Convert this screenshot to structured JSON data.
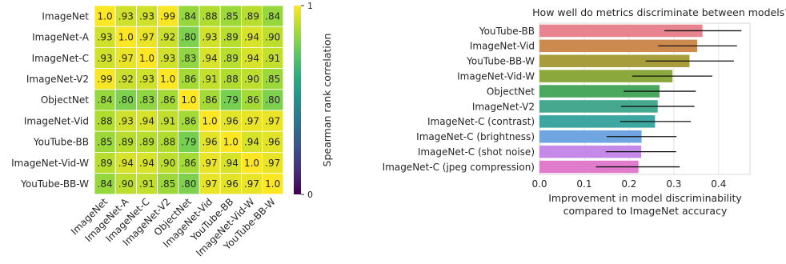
{
  "chart_data": [
    {
      "type": "heatmap",
      "title": "",
      "labels": [
        "ImageNet",
        "ImageNet-A",
        "ImageNet-C",
        "ImageNet-V2",
        "ObjectNet",
        "ImageNet-Vid",
        "YouTube-BB",
        "ImageNet-Vid-W",
        "YouTube-BB-W"
      ],
      "values": [
        [
          1.0,
          0.93,
          0.93,
          0.99,
          0.84,
          0.88,
          0.85,
          0.89,
          0.84
        ],
        [
          0.93,
          1.0,
          0.97,
          0.92,
          0.8,
          0.93,
          0.89,
          0.94,
          0.9
        ],
        [
          0.93,
          0.97,
          1.0,
          0.93,
          0.83,
          0.94,
          0.89,
          0.94,
          0.91
        ],
        [
          0.99,
          0.92,
          0.93,
          1.0,
          0.86,
          0.91,
          0.88,
          0.9,
          0.85
        ],
        [
          0.84,
          0.8,
          0.83,
          0.86,
          1.0,
          0.86,
          0.79,
          0.86,
          0.8
        ],
        [
          0.88,
          0.93,
          0.94,
          0.91,
          0.86,
          1.0,
          0.96,
          0.97,
          0.97
        ],
        [
          0.85,
          0.89,
          0.89,
          0.88,
          0.79,
          0.96,
          1.0,
          0.94,
          0.96
        ],
        [
          0.89,
          0.94,
          0.94,
          0.9,
          0.86,
          0.97,
          0.94,
          1.0,
          0.97
        ],
        [
          0.84,
          0.9,
          0.91,
          0.85,
          0.8,
          0.97,
          0.96,
          0.97,
          1.0
        ]
      ],
      "cell_text": [
        [
          "1.0",
          ".93",
          ".93",
          ".99",
          ".84",
          ".88",
          ".85",
          ".89",
          ".84"
        ],
        [
          ".93",
          "1.0",
          ".97",
          ".92",
          ".80",
          ".93",
          ".89",
          ".94",
          ".90"
        ],
        [
          ".93",
          ".97",
          "1.0",
          ".93",
          ".83",
          ".94",
          ".89",
          ".94",
          ".91"
        ],
        [
          ".99",
          ".92",
          ".93",
          "1.0",
          ".86",
          ".91",
          ".88",
          ".90",
          ".85"
        ],
        [
          ".84",
          ".80",
          ".83",
          ".86",
          "1.0",
          ".86",
          ".79",
          ".86",
          ".80"
        ],
        [
          ".88",
          ".93",
          ".94",
          ".91",
          ".86",
          "1.0",
          ".96",
          ".97",
          ".97"
        ],
        [
          ".85",
          ".89",
          ".89",
          ".88",
          ".79",
          ".96",
          "1.0",
          ".94",
          ".96"
        ],
        [
          ".89",
          ".94",
          ".94",
          ".90",
          ".86",
          ".97",
          ".94",
          "1.0",
          ".97"
        ],
        [
          ".84",
          ".90",
          ".91",
          ".85",
          ".80",
          ".97",
          ".96",
          ".97",
          "1.0"
        ]
      ],
      "colorbar": {
        "label": "Spearman rank correlation",
        "min": 0,
        "max": 1,
        "ticks": [
          "1",
          "0"
        ],
        "colormap": "viridis"
      },
      "grid": false
    },
    {
      "type": "bar",
      "orientation": "horizontal",
      "title": "How well do metrics discriminate between models?",
      "xlabel": [
        "Improvement in model discriminability",
        "compared to ImageNet accuracy"
      ],
      "ylabel": "",
      "xlim": [
        0,
        0.47
      ],
      "xticks": [
        {
          "value": 0.0,
          "label": "0.0"
        },
        {
          "value": 0.1,
          "label": "0.1"
        },
        {
          "value": 0.2,
          "label": "0.2"
        },
        {
          "value": 0.3,
          "label": "0.3"
        },
        {
          "value": 0.4,
          "label": "0.4"
        }
      ],
      "categories": [
        "YouTube-BB",
        "ImageNet-Vid",
        "YouTube-BB-W",
        "ImageNet-Vid-W",
        "ObjectNet",
        "ImageNet-V2",
        "ImageNet-C (contrast)",
        "ImageNet-C (brightness)",
        "ImageNet-C (shot noise)",
        "ImageNet-C (jpeg compression)"
      ],
      "values": [
        0.364,
        0.352,
        0.335,
        0.297,
        0.268,
        0.264,
        0.258,
        0.228,
        0.227,
        0.221
      ],
      "error_low": [
        0.279,
        0.265,
        0.237,
        0.207,
        0.188,
        0.182,
        0.18,
        0.15,
        0.148,
        0.126
      ],
      "error_high": [
        0.451,
        0.441,
        0.434,
        0.386,
        0.349,
        0.346,
        0.338,
        0.306,
        0.305,
        0.313
      ],
      "colors": [
        "#e8848f",
        "#cc8a4e",
        "#a79d3c",
        "#8ba83c",
        "#4aa85e",
        "#46a88e",
        "#3ea6a0",
        "#6fa6e1",
        "#c58ae8",
        "#e17ccd"
      ],
      "grid": true
    }
  ]
}
